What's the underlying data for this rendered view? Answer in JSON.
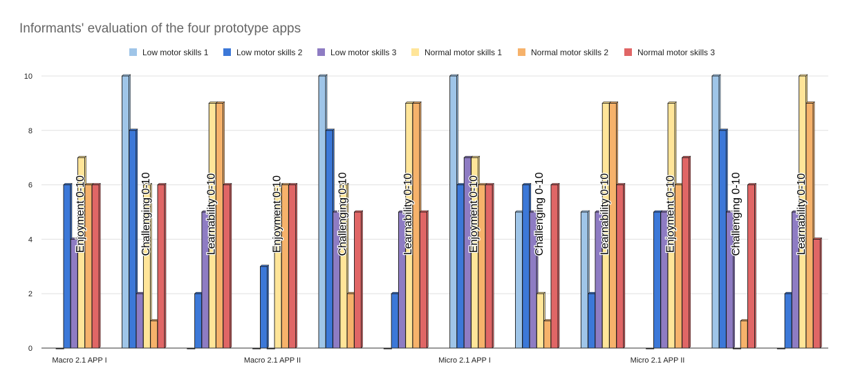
{
  "chart_data": {
    "type": "bar",
    "title": "Informants' evaluation of the four prototype apps",
    "xlabel": "",
    "ylabel": "",
    "ylim": [
      0,
      10
    ],
    "yticks": [
      0,
      2,
      4,
      6,
      8,
      10
    ],
    "grid": true,
    "legend_position": "top",
    "groups": [
      {
        "label": "Macro 2.1 APP I"
      },
      {
        "label": "Macro 2.1 APP II"
      },
      {
        "label": "Micro 2.1 APP I"
      },
      {
        "label": "Micro 2.1 APP II"
      }
    ],
    "categories": [
      "Enjoyment 0-10",
      "Challenging 0-10",
      "Learnability 0-10",
      "Enjoyment 0-10",
      "Challenging 0-10",
      "Learnability 0-10",
      "Enjoyment 0-10",
      "Challenging 0-10",
      "Learnability 0-10",
      "Enjoyment 0-10",
      "Challenging 0-10",
      "Learnability 0-10"
    ],
    "series": [
      {
        "name": "Low motor skills 1",
        "color": "#9fc5e8",
        "values": [
          0,
          10,
          0,
          0,
          10,
          0,
          10,
          5,
          5,
          0,
          10,
          0
        ]
      },
      {
        "name": "Low motor skills 2",
        "color": "#3c78d8",
        "values": [
          6,
          8,
          2,
          3,
          8,
          2,
          6,
          6,
          2,
          5,
          8,
          2
        ]
      },
      {
        "name": "Low motor skills 3",
        "color": "#8e7cc3",
        "values": [
          4,
          2,
          5,
          0,
          5,
          5,
          7,
          5,
          5,
          5,
          5,
          5
        ]
      },
      {
        "name": "Normal motor skills 1",
        "color": "#ffe599",
        "values": [
          7,
          6,
          9,
          6,
          6,
          9,
          7,
          2,
          9,
          9,
          0,
          10
        ]
      },
      {
        "name": "Normal motor skills 2",
        "color": "#f6b26b",
        "values": [
          6,
          1,
          9,
          6,
          2,
          9,
          6,
          1,
          9,
          6,
          1,
          9
        ]
      },
      {
        "name": "Normal motor skills 3",
        "color": "#e06666",
        "values": [
          6,
          6,
          6,
          6,
          5,
          5,
          6,
          6,
          6,
          7,
          6,
          4
        ]
      }
    ]
  }
}
